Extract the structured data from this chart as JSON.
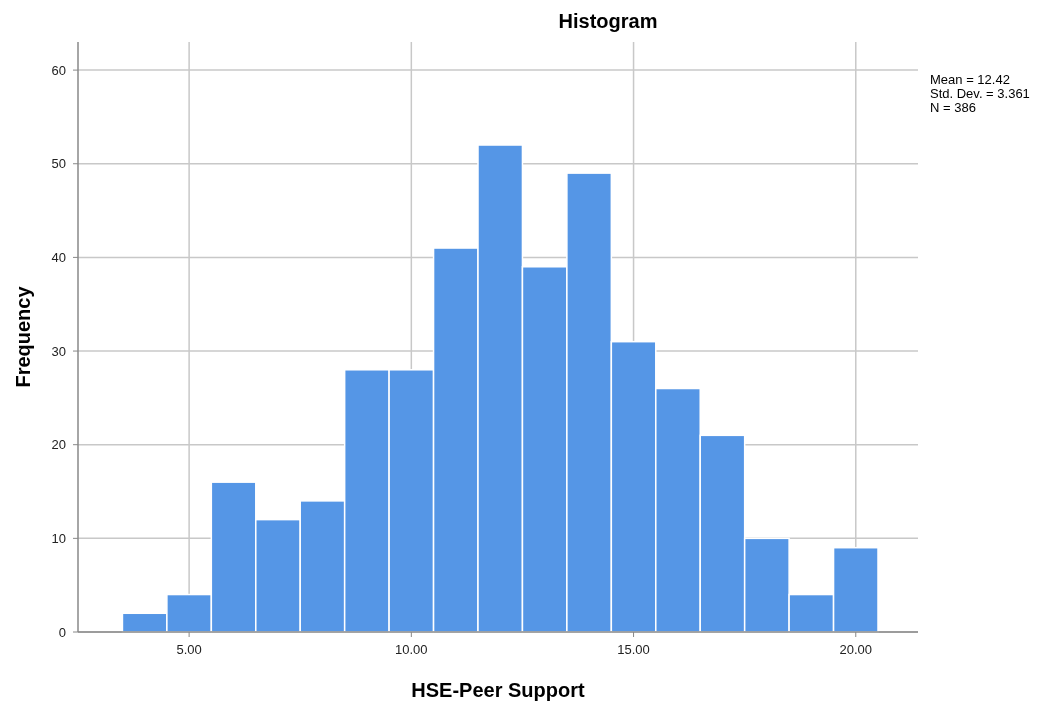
{
  "chart_data": {
    "type": "histogram",
    "title": "Histogram",
    "xlabel": "HSE-Peer Support",
    "ylabel": "Frequency",
    "bins": [
      3.5,
      4.5,
      5.5,
      6.5,
      7.5,
      8.5,
      9.5,
      10.5,
      11.5,
      12.5,
      13.5,
      14.5,
      15.5,
      16.5,
      17.5,
      18.5,
      19.5,
      20.5
    ],
    "values": [
      2,
      4,
      16,
      12,
      14,
      28,
      28,
      41,
      52,
      39,
      49,
      31,
      26,
      21,
      10,
      4,
      9
    ],
    "color": "#5596e6",
    "xlim": [
      2.5,
      21.4
    ],
    "xticks": [
      {
        "value": 5,
        "label": "5.00"
      },
      {
        "value": 10,
        "label": "10.00"
      },
      {
        "value": 15,
        "label": "15.00"
      },
      {
        "value": 20,
        "label": "20.00"
      }
    ],
    "ylim": [
      0,
      63
    ],
    "yticks": [
      0,
      10,
      20,
      30,
      40,
      50,
      60
    ],
    "grid": true,
    "annotations": [
      "Mean = 12.42",
      "Std. Dev. = 3.361",
      "N = 386"
    ]
  }
}
